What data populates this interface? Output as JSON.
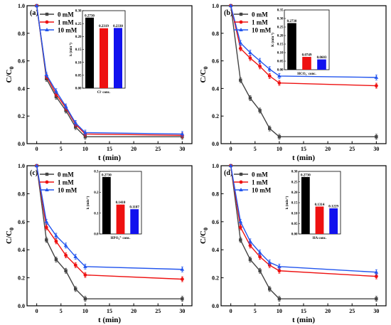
{
  "chart_data": [
    {
      "panel_label": "(a)",
      "type": "line",
      "xlabel": "t (min)",
      "ylabel": "C/C",
      "ylabel_sub": "0",
      "xlim": [
        -2,
        32
      ],
      "ylim": [
        0.0,
        1.0
      ],
      "xticks": [
        0,
        5,
        10,
        15,
        20,
        25,
        30
      ],
      "yticks": [
        0.0,
        0.2,
        0.4,
        0.6,
        0.8,
        1.0
      ],
      "legend_position": "top-left",
      "x": [
        0,
        2,
        4,
        6,
        8,
        10,
        30
      ],
      "series": [
        {
          "name": "0 mM",
          "color": "#444444",
          "marker": "square",
          "values": [
            1.0,
            0.47,
            0.34,
            0.24,
            0.12,
            0.05,
            0.05
          ]
        },
        {
          "name": "1 mM",
          "color": "#ee1111",
          "marker": "circle",
          "values": [
            1.0,
            0.49,
            0.36,
            0.26,
            0.14,
            0.07,
            0.06
          ]
        },
        {
          "name": "10 mM",
          "color": "#2255ee",
          "marker": "triangle",
          "values": [
            1.0,
            0.5,
            0.38,
            0.27,
            0.15,
            0.08,
            0.07
          ]
        }
      ],
      "inset": {
        "type": "bar",
        "ylabel": "k (min",
        "ylabel_sup": "-1",
        "ylabel_end": ")",
        "xlabel": "Cl",
        "xlabel_sup": "-",
        "xlabel_end": " conc.",
        "ylim": [
          0.0,
          0.3
        ],
        "yticks": [
          0.0,
          0.05,
          0.1,
          0.15,
          0.2,
          0.25,
          0.3
        ],
        "ytick_labels": [
          "0.00",
          "0.05",
          "0.10",
          "0.15",
          "0.20",
          "0.25",
          "0.30"
        ],
        "values": [
          0.273,
          0.2319,
          0.233
        ],
        "labels": [
          "0.2730",
          "0.2319",
          "0.2330"
        ],
        "colors": [
          "#000000",
          "#ee1111",
          "#1111ee"
        ]
      }
    },
    {
      "panel_label": "(b)",
      "type": "line",
      "xlabel": "t (min)",
      "ylabel": "C/C",
      "ylabel_sub": "0",
      "xlim": [
        -2,
        32
      ],
      "ylim": [
        0.0,
        1.0
      ],
      "xticks": [
        0,
        5,
        10,
        15,
        20,
        25,
        30
      ],
      "yticks": [
        0.0,
        0.2,
        0.4,
        0.6,
        0.8,
        1.0
      ],
      "legend_position": "top-left",
      "x": [
        0,
        2,
        4,
        6,
        8,
        10,
        30
      ],
      "series": [
        {
          "name": "0 mM",
          "color": "#444444",
          "marker": "square",
          "values": [
            1.0,
            0.46,
            0.33,
            0.24,
            0.11,
            0.05,
            0.05
          ]
        },
        {
          "name": "1 mM",
          "color": "#ee1111",
          "marker": "circle",
          "values": [
            1.0,
            0.69,
            0.62,
            0.56,
            0.49,
            0.44,
            0.42
          ]
        },
        {
          "name": "10 mM",
          "color": "#2255ee",
          "marker": "triangle",
          "values": [
            1.0,
            0.73,
            0.66,
            0.6,
            0.54,
            0.49,
            0.48
          ]
        }
      ],
      "inset": {
        "type": "bar",
        "ylabel": "K (min",
        "ylabel_sup": "-1",
        "ylabel_end": ")",
        "xlabel": "HCO",
        "xlabel_sub": "3",
        "xlabel_sup": "-",
        "xlabel_end": " conc.",
        "ylim": [
          0.0,
          0.35
        ],
        "yticks": [
          0.0,
          0.05,
          0.1,
          0.15,
          0.2,
          0.25,
          0.3,
          0.35
        ],
        "ytick_labels": [
          "0.00",
          "0.05",
          "0.10",
          "0.15",
          "0.20",
          "0.25",
          "0.30",
          "0.35"
        ],
        "values": [
          0.273,
          0.0749,
          0.0603
        ],
        "labels": [
          "0.2730",
          "0.0749",
          "0.0603"
        ],
        "colors": [
          "#000000",
          "#ee1111",
          "#1111ee"
        ]
      }
    },
    {
      "panel_label": "(c)",
      "type": "line",
      "xlabel": "t (min)",
      "ylabel": "C/C",
      "ylabel_sub": "0",
      "xlim": [
        -2,
        32
      ],
      "ylim": [
        0.0,
        1.0
      ],
      "xticks": [
        0,
        5,
        10,
        15,
        20,
        25,
        30
      ],
      "yticks": [
        0.0,
        0.2,
        0.4,
        0.6,
        0.8,
        1.0
      ],
      "legend_position": "top-left",
      "x": [
        0,
        2,
        4,
        6,
        8,
        10,
        30
      ],
      "series": [
        {
          "name": "0 mM",
          "color": "#444444",
          "marker": "square",
          "values": [
            1.0,
            0.47,
            0.33,
            0.25,
            0.12,
            0.05,
            0.05
          ]
        },
        {
          "name": "1 mM",
          "color": "#ee1111",
          "marker": "circle",
          "values": [
            1.0,
            0.56,
            0.46,
            0.36,
            0.29,
            0.22,
            0.19
          ]
        },
        {
          "name": "10 mM",
          "color": "#2255ee",
          "marker": "triangle",
          "values": [
            1.0,
            0.6,
            0.5,
            0.43,
            0.35,
            0.28,
            0.26
          ]
        }
      ],
      "inset": {
        "type": "bar",
        "ylabel": "k (min",
        "ylabel_sup": "-1",
        "ylabel_end": ")",
        "xlabel": "HPO",
        "xlabel_sub": "4",
        "xlabel_sup": "2-",
        "xlabel_end": " conc.",
        "ylim": [
          0.0,
          0.3
        ],
        "yticks": [
          0.0,
          0.1,
          0.2,
          0.3
        ],
        "ytick_labels": [
          "0.0",
          "0.1",
          "0.2",
          "0.3"
        ],
        "values": [
          0.273,
          0.141,
          0.1187
        ],
        "labels": [
          "0.2730",
          "0.1410",
          "0.1187"
        ],
        "colors": [
          "#000000",
          "#ee1111",
          "#1111ee"
        ]
      }
    },
    {
      "panel_label": "(d)",
      "type": "line",
      "xlabel": "t (min)",
      "ylabel": "C/C",
      "ylabel_sub": "0",
      "xlim": [
        -2,
        32
      ],
      "ylim": [
        0.0,
        1.0
      ],
      "xticks": [
        0,
        5,
        10,
        15,
        20,
        25,
        30
      ],
      "yticks": [
        0.0,
        0.2,
        0.4,
        0.6,
        0.8,
        1.0
      ],
      "legend_position": "top-left",
      "x": [
        0,
        2,
        4,
        6,
        8,
        10,
        30
      ],
      "series": [
        {
          "name": "0 mM",
          "color": "#444444",
          "marker": "square",
          "values": [
            1.0,
            0.47,
            0.33,
            0.25,
            0.12,
            0.05,
            0.05
          ]
        },
        {
          "name": "1 mM",
          "color": "#ee1111",
          "marker": "circle",
          "values": [
            1.0,
            0.56,
            0.43,
            0.35,
            0.29,
            0.25,
            0.21
          ]
        },
        {
          "name": "10 mM",
          "color": "#2255ee",
          "marker": "triangle",
          "values": [
            1.0,
            0.6,
            0.46,
            0.38,
            0.31,
            0.28,
            0.24
          ]
        }
      ],
      "inset": {
        "type": "bar",
        "ylabel": "k (min",
        "ylabel_sup": "-1",
        "ylabel_end": ")",
        "xlabel": "HA conc.",
        "ylim": [
          0.0,
          0.3
        ],
        "yticks": [
          0.0,
          0.05,
          0.1,
          0.15,
          0.2,
          0.25,
          0.3
        ],
        "ytick_labels": [
          "0.00",
          "0.05",
          "0.10",
          "0.15",
          "0.20",
          "0.25",
          "0.30"
        ],
        "values": [
          0.273,
          0.1314,
          0.1229
        ],
        "labels": [
          "0.2730",
          "0.1314",
          "0.1229"
        ],
        "colors": [
          "#000000",
          "#ee1111",
          "#1111ee"
        ]
      }
    }
  ]
}
